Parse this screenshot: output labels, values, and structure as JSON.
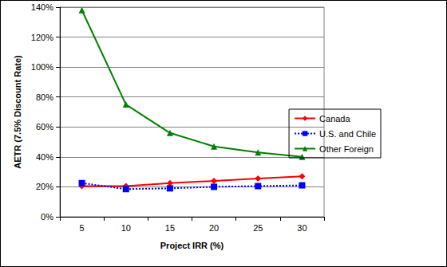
{
  "chart_data": {
    "type": "line",
    "x_label": "Project IRR (%)",
    "y_label": "AETR (7.5% Discount Rate)",
    "categories": [
      "5",
      "10",
      "15",
      "20",
      "25",
      "30"
    ],
    "series": [
      {
        "name": "Canada",
        "color": "#ff0000",
        "marker": "diamond",
        "line_style": "solid",
        "values": [
          20.5,
          20.5,
          22.5,
          24,
          25.5,
          27
        ]
      },
      {
        "name": "U.S. and Chile",
        "color": "#0000ff",
        "marker": "square",
        "line_style": "dotted",
        "values": [
          22.5,
          18.5,
          19,
          20,
          20.5,
          21
        ]
      },
      {
        "name": "Other Foreign",
        "color": "#008000",
        "marker": "triangle",
        "line_style": "solid",
        "values": [
          138,
          75,
          56,
          47,
          43,
          40
        ]
      }
    ],
    "ylim": [
      0,
      140
    ],
    "yticks": [
      {
        "value": 0,
        "label": "0%"
      },
      {
        "value": 20,
        "label": "20%"
      },
      {
        "value": 40,
        "label": "40%"
      },
      {
        "value": 60,
        "label": "60%"
      },
      {
        "value": 80,
        "label": "80%"
      },
      {
        "value": 100,
        "label": "100%"
      },
      {
        "value": 120,
        "label": "120%"
      },
      {
        "value": 140,
        "label": "140%"
      }
    ],
    "grid": true,
    "legend": "right"
  }
}
